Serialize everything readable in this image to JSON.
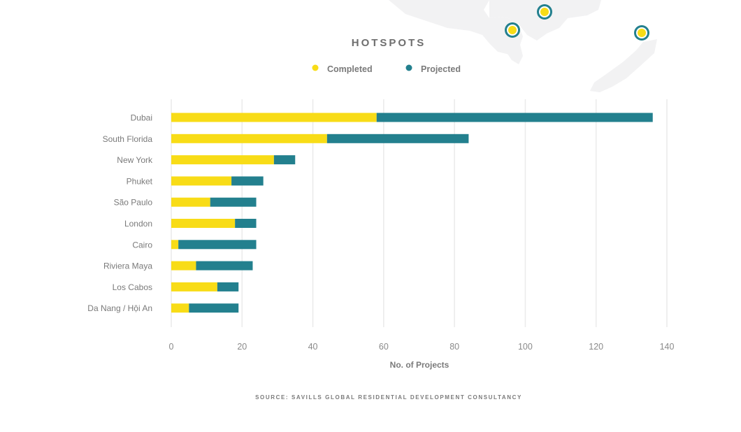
{
  "chart_data": {
    "type": "bar",
    "orientation": "horizontal",
    "stacked": true,
    "title": "HOTSPOTS",
    "xlabel": "No. of Projects",
    "ylabel": "",
    "xlim": [
      0,
      140
    ],
    "xticks": [
      0,
      20,
      40,
      60,
      80,
      100,
      120,
      140
    ],
    "grid": true,
    "legend_position": "top-center",
    "categories": [
      "Dubai",
      "South Florida",
      "New York",
      "Phuket",
      "São Paulo",
      "London",
      "Cairo",
      "Riviera Maya",
      "Los Cabos",
      "Da Nang / Hội An"
    ],
    "series": [
      {
        "name": "Completed",
        "color": "#F8DC17",
        "values": [
          58,
          44,
          29,
          17,
          11,
          18,
          2,
          7,
          13,
          5
        ]
      },
      {
        "name": "Projected",
        "color": "#23808E",
        "values": [
          78,
          40,
          6,
          9,
          13,
          6,
          22,
          16,
          6,
          14
        ]
      }
    ],
    "source": "SOURCE: SAVILLS GLOBAL RESIDENTIAL DEVELOPMENT CONSULTANCY"
  },
  "map_markers": [
    {
      "name": "map-marker",
      "fill": "#F8DC17",
      "ring": "#23808E"
    },
    {
      "name": "map-marker",
      "fill": "#F8DC17",
      "ring": "#23808E"
    },
    {
      "name": "map-marker",
      "fill": "#F8DC17",
      "ring": "#23808E"
    }
  ]
}
